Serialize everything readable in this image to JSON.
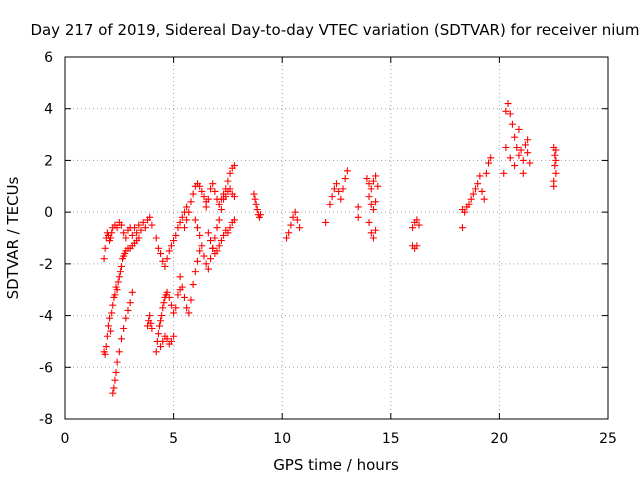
{
  "chart_data": {
    "type": "scatter",
    "title": "Day 217 of 2019, Sidereal Day-to-day VTEC variation (SDTVAR) for receiver nium",
    "xlabel": "GPS time / hours",
    "ylabel": "SDTVAR / TECUs",
    "xlim": [
      0,
      25
    ],
    "ylim": [
      -8,
      6
    ],
    "x_ticks": [
      "0",
      "5",
      "10",
      "15",
      "20",
      "25"
    ],
    "y_ticks": [
      "-8",
      "-6",
      "-4",
      "-2",
      "0",
      "2",
      "4",
      "6"
    ],
    "grid": true,
    "marker": "+",
    "marker_color": "#ff0000",
    "series": [
      {
        "name": "SDTVAR",
        "x": [
          1.8,
          1.85,
          1.9,
          1.95,
          2.0,
          2.05,
          2.1,
          2.15,
          2.2,
          2.3,
          2.4,
          2.5,
          2.6,
          2.7,
          2.8,
          2.9,
          3.0,
          3.1,
          3.2,
          3.3,
          3.4,
          3.5,
          3.6,
          3.7,
          3.8,
          3.9,
          4.0,
          1.8,
          1.85,
          1.9,
          1.95,
          2.0,
          2.05,
          2.1,
          2.15,
          2.2,
          2.25,
          2.3,
          2.35,
          2.4,
          2.45,
          2.5,
          2.55,
          2.6,
          2.65,
          2.7,
          2.75,
          2.8,
          2.9,
          3.0,
          3.1,
          3.2,
          3.3,
          3.4,
          2.2,
          2.25,
          2.3,
          2.35,
          2.4,
          2.5,
          2.6,
          2.7,
          2.8,
          2.9,
          3.0,
          3.1,
          3.8,
          3.85,
          3.9,
          3.95,
          4.0,
          4.2,
          4.25,
          4.3,
          4.35,
          4.4,
          4.45,
          4.5,
          4.55,
          4.6,
          4.65,
          4.7,
          4.8,
          4.9,
          5.0,
          5.1,
          5.2,
          5.3,
          4.4,
          4.5,
          4.6,
          4.7,
          4.8,
          4.9,
          5.0,
          4.2,
          4.3,
          4.4,
          4.5,
          4.6,
          4.7,
          4.8,
          4.9,
          5.0,
          5.1,
          5.2,
          5.3,
          5.4,
          5.5,
          5.6,
          5.3,
          5.4,
          5.5,
          5.6,
          5.7,
          5.8,
          5.9,
          6.0,
          6.1,
          6.2,
          5.5,
          5.6,
          5.7,
          5.8,
          5.9,
          6.0,
          6.1,
          6.2,
          6.3,
          6.4,
          6.5,
          6.0,
          6.1,
          6.2,
          6.3,
          6.4,
          6.5,
          6.6,
          6.7,
          6.8,
          6.9,
          7.0,
          7.1,
          7.2,
          7.3,
          7.4,
          7.5,
          7.6,
          7.7,
          7.8,
          6.5,
          6.6,
          6.7,
          6.8,
          6.9,
          7.0,
          7.1,
          7.2,
          7.3,
          7.4,
          7.5,
          7.6,
          7.7,
          7.8,
          6.6,
          6.7,
          6.8,
          6.9,
          7.0,
          7.1,
          7.2,
          7.3,
          7.4,
          7.5,
          7.6,
          7.7,
          7.8,
          8.7,
          8.75,
          8.8,
          8.85,
          8.9,
          8.95,
          9.0,
          10.2,
          10.3,
          10.4,
          10.5,
          10.6,
          10.7,
          10.8,
          12.0,
          12.2,
          12.3,
          12.4,
          12.5,
          12.6,
          12.7,
          12.8,
          12.9,
          13.0,
          13.5,
          13.5,
          13.9,
          14.0,
          14.1,
          14.2,
          14.3,
          14.4,
          14.0,
          14.1,
          14.2,
          14.3,
          14.0,
          14.1,
          14.2,
          14.3,
          16.0,
          16.1,
          16.2,
          16.3,
          16.0,
          16.1,
          16.2,
          18.3,
          18.4,
          18.5,
          18.6,
          18.7,
          18.8,
          18.9,
          19.0,
          19.1,
          19.2,
          19.3,
          19.4,
          19.5,
          19.6,
          18.3,
          20.2,
          20.3,
          20.4,
          20.5,
          20.6,
          20.7,
          20.8,
          20.9,
          21.0,
          21.1,
          21.2,
          21.3,
          21.4,
          20.3,
          20.5,
          20.7,
          20.9,
          21.1,
          21.3,
          22.5,
          22.5,
          22.55,
          22.55,
          22.6,
          22.6,
          22.6,
          22.5
        ],
        "y": [
          -1.8,
          -1.4,
          -1.0,
          -0.8,
          -0.9,
          -1.1,
          -1.0,
          -0.8,
          -0.6,
          -0.5,
          -0.6,
          -0.4,
          -0.5,
          -0.8,
          -1.0,
          -0.7,
          -0.6,
          -0.9,
          -0.6,
          -0.8,
          -0.5,
          -0.7,
          -0.4,
          -0.6,
          -0.3,
          -0.2,
          -0.5,
          -5.4,
          -5.5,
          -5.2,
          -4.8,
          -4.4,
          -4.1,
          -4.6,
          -3.9,
          -3.6,
          -3.3,
          -3.2,
          -2.9,
          -3.0,
          -2.7,
          -2.5,
          -2.3,
          -2.1,
          -1.8,
          -1.7,
          -1.6,
          -1.5,
          -1.4,
          -1.4,
          -1.3,
          -1.2,
          -1.1,
          -1.0,
          -7.0,
          -6.8,
          -6.5,
          -6.2,
          -5.8,
          -5.4,
          -4.9,
          -4.5,
          -4.1,
          -3.8,
          -3.5,
          -3.1,
          -4.4,
          -4.2,
          -4.0,
          -4.3,
          -4.5,
          -5.4,
          -5.0,
          -4.7,
          -4.4,
          -4.2,
          -4.0,
          -3.7,
          -3.5,
          -3.3,
          -3.2,
          -3.1,
          -3.3,
          -3.6,
          -3.9,
          -3.7,
          -3.2,
          -3.0,
          -5.2,
          -5.0,
          -4.8,
          -4.9,
          -5.1,
          -5.0,
          -4.8,
          -1.0,
          -1.4,
          -1.6,
          -1.9,
          -2.1,
          -1.8,
          -1.5,
          -1.3,
          -1.1,
          -0.9,
          -0.6,
          -0.4,
          -0.2,
          0.0,
          0.2,
          -2.5,
          -2.9,
          -3.3,
          -3.7,
          -3.9,
          -3.4,
          -2.8,
          -2.3,
          -1.9,
          -1.5,
          -0.6,
          -0.3,
          0.0,
          0.4,
          0.7,
          1.0,
          1.1,
          1.0,
          0.8,
          0.6,
          0.4,
          -0.3,
          -0.6,
          -0.9,
          -1.3,
          -1.7,
          -2.0,
          -2.2,
          -1.8,
          -1.4,
          -1.0,
          -0.6,
          -0.3,
          0.1,
          0.5,
          0.9,
          1.2,
          1.5,
          1.7,
          1.8,
          0.2,
          0.5,
          0.9,
          1.1,
          0.8,
          0.5,
          0.3,
          0.5,
          0.7,
          0.6,
          0.8,
          0.9,
          0.7,
          0.6,
          -0.8,
          -1.1,
          -1.4,
          -1.6,
          -1.5,
          -1.3,
          -1.1,
          -0.9,
          -0.7,
          -0.8,
          -0.6,
          -0.4,
          -0.3,
          0.7,
          0.5,
          0.3,
          0.1,
          -0.1,
          -0.2,
          -0.1,
          -1.0,
          -0.8,
          -0.5,
          -0.2,
          0.0,
          -0.3,
          -0.6,
          -0.4,
          0.3,
          0.6,
          0.9,
          1.1,
          0.8,
          0.5,
          0.9,
          1.3,
          1.6,
          0.2,
          -0.2,
          1.3,
          1.1,
          0.9,
          1.2,
          1.4,
          1.0,
          0.6,
          0.3,
          0.1,
          0.4,
          -0.4,
          -0.8,
          -1.0,
          -0.7,
          -0.6,
          -0.4,
          -0.3,
          -0.5,
          -1.3,
          -1.4,
          -1.3,
          0.1,
          0.0,
          0.2,
          0.3,
          0.5,
          0.7,
          0.9,
          1.1,
          1.4,
          0.8,
          0.5,
          1.5,
          1.9,
          2.1,
          -0.6,
          1.5,
          3.9,
          4.2,
          3.8,
          3.4,
          2.9,
          2.5,
          2.2,
          2.4,
          2.0,
          2.6,
          2.3,
          1.9,
          2.5,
          2.1,
          1.8,
          3.2,
          1.5,
          2.8,
          1.2,
          2.5,
          1.8,
          2.2,
          1.5,
          2.0,
          2.4,
          1.0
        ]
      }
    ]
  }
}
